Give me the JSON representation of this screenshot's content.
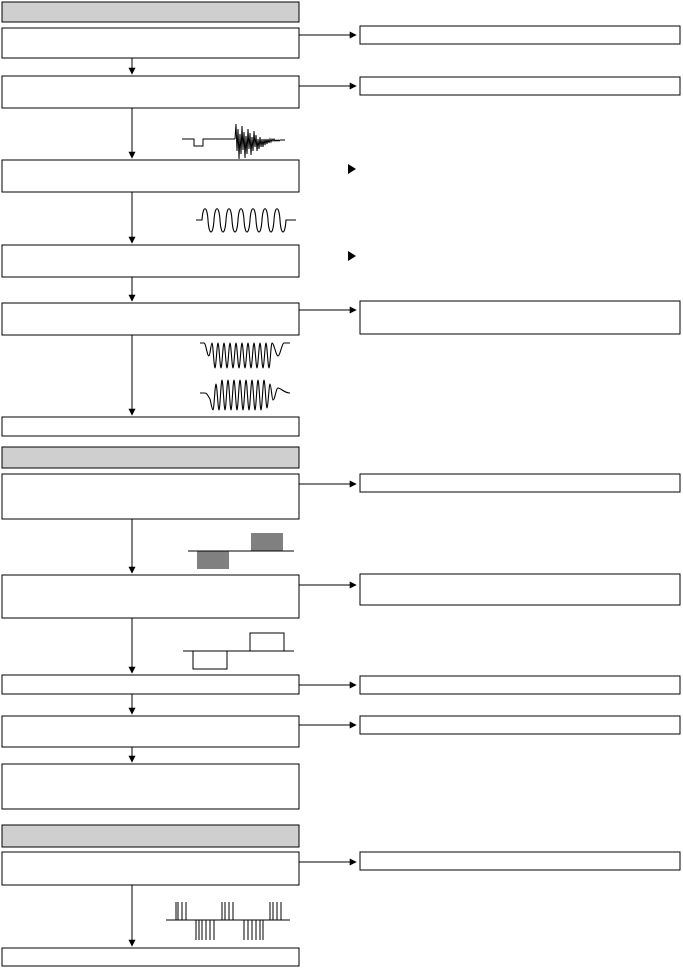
{
  "sections": [
    {
      "header": ""
    },
    {
      "header": ""
    },
    {
      "header": ""
    }
  ],
  "colors": {
    "header_fill": "#cfcfcf",
    "line": "#000000",
    "background": "#ffffff"
  },
  "waveform_icons": [
    "step-then-burst-waveform",
    "sine-burst-waveform",
    "modulated-sine-waveform",
    "envelope-sine-waveform",
    "pulse-train-waveform",
    "square-pulse-waveform",
    "pulse-group-waveform"
  ]
}
